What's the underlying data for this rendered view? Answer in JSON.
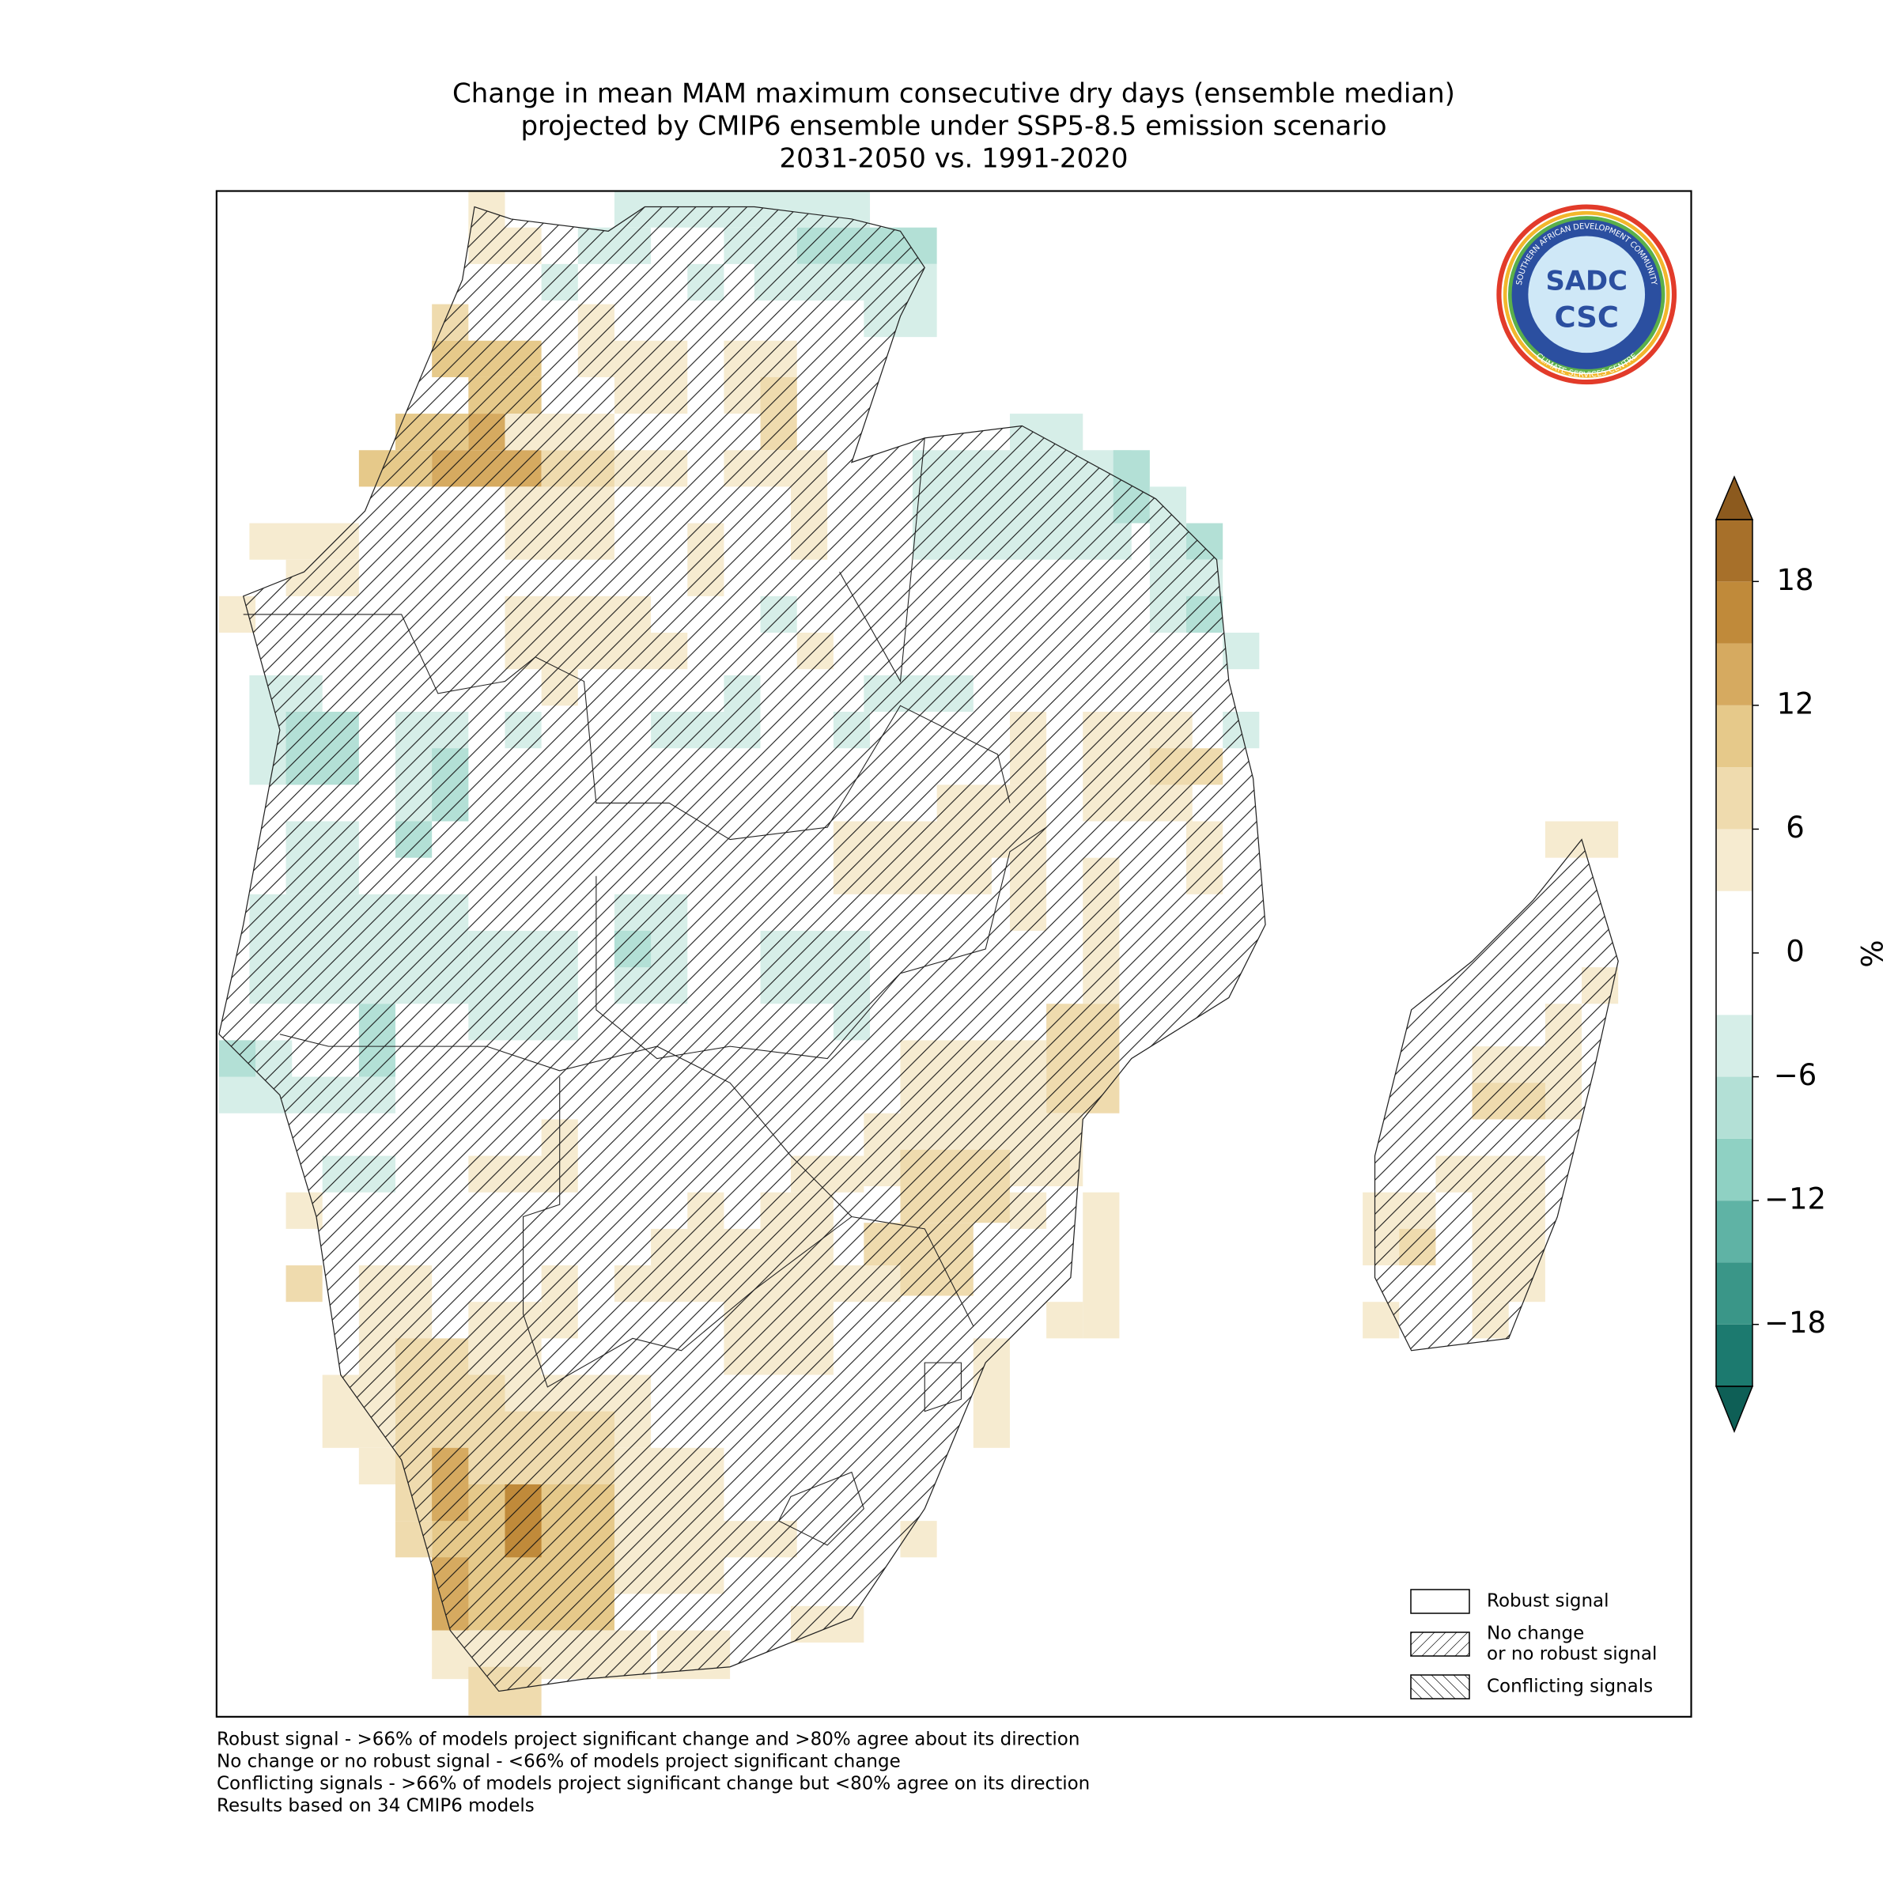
{
  "chart_data": {
    "type": "map",
    "title": [
      "Change in mean MAM maximum consecutive dry days (ensemble median)",
      "projected by CMIP6 ensemble under SSP5-8.5 emission scenario",
      "2031-2050 vs. 1991-2020"
    ],
    "colorbar": {
      "label": "%",
      "bounds": [
        -21,
        -18,
        -15,
        -12,
        -9,
        -6,
        -3,
        0,
        3,
        6,
        9,
        12,
        15,
        18,
        21
      ],
      "colors": [
        "#1c7a6f",
        "#3a9688",
        "#5fb3a5",
        "#8fd1c3",
        "#b3e0d6",
        "#d6eee8",
        "#ffffff",
        "#ffffff",
        "#f6ebd0",
        "#efdbae",
        "#e6c98a",
        "#d6aa60",
        "#c08a3a",
        "#a7702a"
      ],
      "under_color": "#0e5f56",
      "over_color": "#8c5a1e",
      "ticks": [
        {
          "value": -18,
          "label": "−18"
        },
        {
          "value": -12,
          "label": "−12"
        },
        {
          "value": -6,
          "label": "−6"
        },
        0,
        6,
        12,
        18
      ]
    },
    "legend": [
      {
        "label": [
          "Robust signal"
        ],
        "hatch": "none"
      },
      {
        "label": [
          "No change",
          "or no robust signal"
        ],
        "hatch": "forward"
      },
      {
        "label": [
          "Conflicting signals"
        ],
        "hatch": "back"
      }
    ],
    "footnotes": [
      "Robust signal - >66% of models project significant change and >80% agree about its direction",
      "No change or no robust signal - <66% of models project significant change",
      "Conflicting signals - >66% of models project significant change but <80% agree on its direction",
      "Results based on 34 CMIP6 models"
    ],
    "logo": {
      "top": "SADC",
      "bottom": "CSC",
      "ring_top": "SOUTHERN AFRICAN DEVELOPMENT COMMUNITY",
      "ring_bottom": "CLIMATE SERVICES CENTRE"
    }
  }
}
